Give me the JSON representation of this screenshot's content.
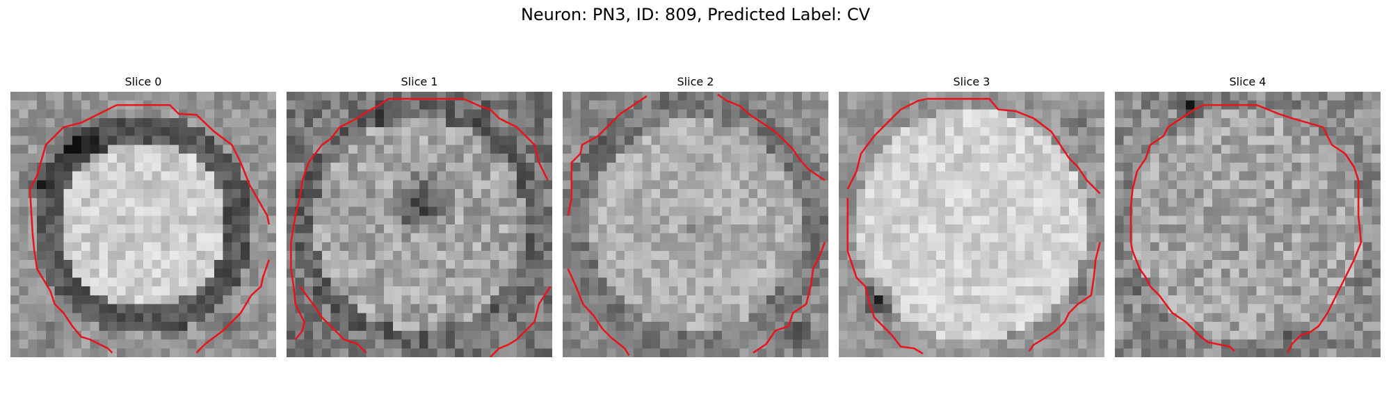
{
  "figure": {
    "title": "Neuron: PN3, ID: 809, Predicted Label: CV",
    "contour_color": "#e8141c"
  },
  "slices": [
    {
      "title": "Slice 0"
    },
    {
      "title": "Slice 1"
    },
    {
      "title": "Slice 2"
    },
    {
      "title": "Slice 3"
    },
    {
      "title": "Slice 4"
    }
  ]
}
